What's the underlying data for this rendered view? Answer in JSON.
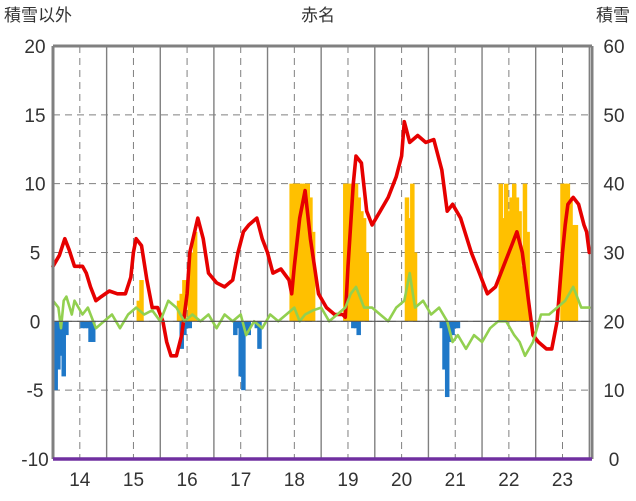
{
  "chart_data": {
    "type": "bar+line",
    "title": "赤名",
    "y_left_label": "積雪以外",
    "y_right_label": "積雪",
    "y_left_range": [
      -10,
      20
    ],
    "y_left_ticks": [
      "-10",
      "-5",
      "0",
      "5",
      "10",
      "15",
      "20"
    ],
    "y_right_range": [
      0,
      60
    ],
    "y_right_ticks": [
      "0",
      "10",
      "20",
      "30",
      "40",
      "50",
      "60"
    ],
    "x_range": [
      13.5,
      23.55
    ],
    "x_ticks": [
      {
        "value": 14,
        "label": "14"
      },
      {
        "value": 15,
        "label": "15"
      },
      {
        "value": 16,
        "label": "16"
      },
      {
        "value": 17,
        "label": "17"
      },
      {
        "value": 18,
        "label": "18"
      },
      {
        "value": 19,
        "label": "19"
      },
      {
        "value": 20,
        "label": "20"
      },
      {
        "value": 21,
        "label": "21"
      },
      {
        "value": 22,
        "label": "22"
      },
      {
        "value": 23,
        "label": "23"
      }
    ],
    "colors": {
      "red": "#e60000",
      "green": "#92d050",
      "blue": "#1f78c8",
      "orange": "#ffc000",
      "axis": "#808080",
      "grid": "#808080",
      "bottom": "#7030a0"
    },
    "series": [
      {
        "color_key": "red",
        "axis": "left",
        "x": [
          13.5,
          13.62,
          13.72,
          13.8,
          13.9,
          14.05,
          14.12,
          14.2,
          14.3,
          14.4,
          14.55,
          14.7,
          14.85,
          14.95,
          15.0,
          15.05,
          15.15,
          15.25,
          15.35,
          15.45,
          15.55,
          15.62,
          15.7,
          15.8,
          15.9,
          16.0,
          16.05,
          16.2,
          16.3,
          16.4,
          16.55,
          16.7,
          16.85,
          16.95,
          17.05,
          17.15,
          17.3,
          17.4,
          17.5,
          17.6,
          17.75,
          17.9,
          17.95,
          18.0,
          18.1,
          18.2,
          18.3,
          18.45,
          18.6,
          18.75,
          18.9,
          18.95,
          19.0,
          19.1,
          19.15,
          19.25,
          19.35,
          19.45,
          19.6,
          19.75,
          19.9,
          20.0,
          20.05,
          20.15,
          20.3,
          20.45,
          20.6,
          20.75,
          20.85,
          20.95,
          21.1,
          21.3,
          21.45,
          21.6,
          21.75,
          21.9,
          22.0,
          22.05,
          22.15,
          22.25,
          22.35,
          22.45,
          22.55,
          22.7,
          22.8,
          22.9,
          23.0,
          23.05,
          23.1,
          23.2,
          23.3,
          23.4,
          23.45,
          23.5
        ],
        "y": [
          4.0,
          4.8,
          6.0,
          5.2,
          4.0,
          4.0,
          3.5,
          2.5,
          1.5,
          1.8,
          2.2,
          2.0,
          2.0,
          3.2,
          5.0,
          6.0,
          5.5,
          3.0,
          1.0,
          1.0,
          0.0,
          -1.5,
          -2.5,
          -2.5,
          -1.0,
          2.0,
          5.0,
          7.5,
          6.0,
          3.5,
          2.8,
          2.5,
          3.0,
          5.0,
          6.5,
          7.0,
          7.5,
          6.0,
          5.0,
          3.5,
          3.8,
          3.0,
          2.0,
          4.0,
          7.5,
          9.5,
          6.0,
          2.0,
          1.0,
          0.5,
          0.5,
          0.3,
          4.0,
          10.0,
          12.0,
          11.5,
          8.0,
          7.0,
          8.0,
          9.0,
          10.5,
          12.0,
          14.5,
          13.0,
          13.5,
          13.0,
          13.2,
          11.0,
          8.0,
          8.5,
          7.5,
          5.0,
          3.5,
          2.0,
          2.5,
          4.0,
          5.0,
          5.5,
          6.5,
          5.0,
          2.0,
          -1.0,
          -1.5,
          -2.0,
          -2.0,
          0.0,
          5.0,
          7.0,
          8.5,
          9.0,
          8.5,
          7.0,
          6.5,
          5.0
        ]
      },
      {
        "color_key": "green",
        "axis": "left",
        "x": [
          13.5,
          13.6,
          13.65,
          13.7,
          13.75,
          13.85,
          13.9,
          14.05,
          14.15,
          14.3,
          14.45,
          14.6,
          14.75,
          14.9,
          15.05,
          15.2,
          15.35,
          15.5,
          15.65,
          15.8,
          15.95,
          16.1,
          16.25,
          16.4,
          16.55,
          16.7,
          16.85,
          17.0,
          17.1,
          17.25,
          17.4,
          17.55,
          17.7,
          17.85,
          18.0,
          18.1,
          18.2,
          18.35,
          18.5,
          18.65,
          18.8,
          18.95,
          19.05,
          19.15,
          19.3,
          19.45,
          19.6,
          19.75,
          19.9,
          20.05,
          20.15,
          20.25,
          20.4,
          20.55,
          20.7,
          20.85,
          20.95,
          21.05,
          21.2,
          21.35,
          21.5,
          21.65,
          21.8,
          21.95,
          22.1,
          22.2,
          22.3,
          22.45,
          22.6,
          22.75,
          22.9,
          23.05,
          23.2,
          23.35,
          23.5
        ],
        "y": [
          1.5,
          1.0,
          -0.5,
          1.5,
          1.8,
          0.5,
          1.5,
          0.5,
          1.0,
          -0.5,
          0.0,
          0.5,
          -0.5,
          0.5,
          1.0,
          0.5,
          0.8,
          0.0,
          1.5,
          1.0,
          0.0,
          0.5,
          0.0,
          0.5,
          -0.5,
          0.5,
          0.0,
          0.5,
          -1.0,
          0.0,
          -0.5,
          0.5,
          0.0,
          0.5,
          1.0,
          0.0,
          0.5,
          0.8,
          1.0,
          0.0,
          0.5,
          1.0,
          2.0,
          2.5,
          1.0,
          1.0,
          0.5,
          0.0,
          1.0,
          1.5,
          3.5,
          1.0,
          1.5,
          0.5,
          1.0,
          0.0,
          -1.5,
          -1.0,
          -2.0,
          -1.0,
          -1.5,
          -0.5,
          0.0,
          0.0,
          -1.0,
          -1.5,
          -2.5,
          -1.5,
          0.5,
          0.5,
          1.0,
          1.5,
          2.5,
          1.0,
          1.0
        ]
      }
    ],
    "bars": [
      {
        "color_key": "orange",
        "axis": "right",
        "x": [
          15.1,
          15.15,
          15.85,
          15.9,
          15.95,
          16.05,
          16.1,
          16.15,
          17.95,
          18.0,
          18.05,
          18.1,
          18.15,
          18.2,
          18.25,
          18.3,
          18.35,
          18.95,
          19.0,
          19.05,
          19.1,
          19.15,
          19.2,
          19.25,
          19.3,
          19.35,
          20.1,
          20.15,
          20.2,
          20.25,
          21.85,
          21.9,
          21.95,
          22.0,
          22.05,
          22.1,
          22.15,
          22.2,
          22.25,
          22.3,
          22.35,
          23.0,
          23.05,
          23.1,
          23.15,
          23.2,
          23.25
        ],
        "values": [
          23,
          26,
          23,
          24,
          26,
          28,
          30,
          33,
          40,
          40,
          40,
          40,
          40,
          40,
          40,
          38,
          33,
          40,
          40,
          40,
          40,
          40,
          38,
          36,
          35,
          30,
          38,
          35,
          40,
          30,
          40,
          35,
          40,
          36,
          38,
          40,
          38,
          36,
          28,
          40,
          33,
          40,
          40,
          40,
          38,
          34,
          34
        ]
      },
      {
        "color_key": "blue",
        "axis": "left",
        "x": [
          13.55,
          13.6,
          13.65,
          13.7,
          13.75,
          14.05,
          14.1,
          14.15,
          14.2,
          14.25,
          15.9,
          15.95,
          16.0,
          16.05,
          16.9,
          16.95,
          17.0,
          17.05,
          17.1,
          17.15,
          17.3,
          17.35,
          19.1,
          19.15,
          19.2,
          20.75,
          20.8,
          20.85,
          20.9,
          20.95,
          21.0,
          21.05
        ],
        "values": [
          -5.0,
          -3.5,
          -2.5,
          -4.0,
          -1.0,
          -0.5,
          -0.5,
          -0.5,
          -1.5,
          -1.5,
          -2.0,
          -1.0,
          -0.5,
          -0.5,
          -1.0,
          -0.5,
          -4.0,
          -5.0,
          -1.0,
          -1.0,
          -0.5,
          -2.0,
          -0.5,
          -0.5,
          -1.0,
          -0.5,
          -3.5,
          -5.5,
          -1.5,
          -1.0,
          -0.5,
          -0.5
        ]
      }
    ]
  }
}
